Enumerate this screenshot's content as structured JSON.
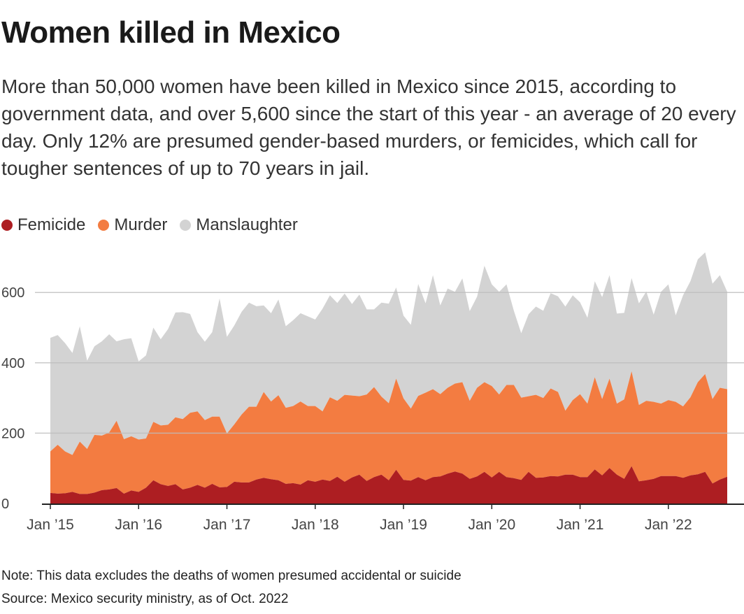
{
  "title": "Women killed in Mexico",
  "subtitle": "More than 50,000 women have been killed in Mexico since 2015, according to government data, and over 5,600 since the start of this year - an average of 20 every day. Only 12% are presumed gender-based murders, or femicides, which call for tougher sentences of up to 70 years in jail.",
  "note": "Note: This data excludes the deaths of women presumed accidental or suicide",
  "source": "Source: Mexico security ministry, as of Oct. 2022",
  "chart_data": {
    "type": "area",
    "stacked": true,
    "x_start": "Jan 2015",
    "x_end": "Sep 2022",
    "frequency": "monthly",
    "x_ticks": [
      "Jan ’15",
      "Jan ’16",
      "Jan ’17",
      "Jan ’18",
      "Jan ’19",
      "Jan ’20",
      "Jan ’21",
      "Jan ’22"
    ],
    "y_ticks": [
      "0",
      "200",
      "400",
      "600"
    ],
    "ylim": [
      0,
      720
    ],
    "grid": true,
    "legend_position": "top-left",
    "series": [
      {
        "name": "Femicide",
        "color": "#ad1e22",
        "values": [
          30,
          28,
          29,
          33,
          27,
          27,
          31,
          38,
          40,
          44,
          28,
          37,
          33,
          45,
          66,
          55,
          50,
          55,
          40,
          45,
          53,
          45,
          56,
          46,
          47,
          62,
          60,
          60,
          68,
          73,
          69,
          66,
          56,
          58,
          54,
          66,
          62,
          68,
          64,
          76,
          62,
          74,
          82,
          64,
          75,
          82,
          66,
          96,
          67,
          65,
          75,
          66,
          75,
          77,
          85,
          91,
          85,
          70,
          77,
          90,
          74,
          90,
          75,
          72,
          67,
          90,
          73,
          74,
          78,
          77,
          82,
          82,
          75,
          75,
          97,
          80,
          101,
          82,
          70,
          106,
          63,
          66,
          70,
          78,
          78,
          78,
          73,
          80,
          83,
          90,
          57,
          68,
          76
        ]
      },
      {
        "name": "Murder",
        "color": "#f37c41",
        "values": [
          118,
          139,
          119,
          105,
          149,
          128,
          164,
          155,
          162,
          191,
          155,
          154,
          149,
          140,
          166,
          167,
          174,
          190,
          200,
          213,
          209,
          192,
          191,
          201,
          152,
          163,
          193,
          215,
          207,
          244,
          221,
          242,
          216,
          219,
          236,
          211,
          215,
          194,
          238,
          216,
          247,
          233,
          223,
          246,
          256,
          222,
          219,
          259,
          232,
          205,
          231,
          249,
          250,
          234,
          244,
          250,
          260,
          222,
          252,
          255,
          260,
          220,
          262,
          265,
          234,
          215,
          236,
          226,
          249,
          240,
          182,
          212,
          236,
          209,
          262,
          217,
          254,
          202,
          226,
          270,
          217,
          226,
          219,
          206,
          216,
          211,
          203,
          222,
          262,
          278,
          240,
          261,
          249
        ]
      },
      {
        "name": "Manslaughter",
        "color": "#d3d3d3",
        "values": [
          323,
          312,
          308,
          290,
          328,
          251,
          252,
          268,
          279,
          226,
          284,
          279,
          222,
          236,
          268,
          245,
          272,
          298,
          304,
          281,
          225,
          223,
          240,
          336,
          275,
          281,
          292,
          296,
          286,
          246,
          251,
          272,
          232,
          244,
          251,
          255,
          246,
          292,
          290,
          278,
          288,
          260,
          289,
          242,
          221,
          267,
          283,
          259,
          235,
          238,
          318,
          254,
          324,
          252,
          282,
          261,
          295,
          255,
          259,
          331,
          289,
          292,
          286,
          211,
          183,
          233,
          251,
          248,
          271,
          272,
          296,
          298,
          261,
          244,
          273,
          290,
          294,
          256,
          246,
          265,
          289,
          311,
          248,
          318,
          329,
          246,
          316,
          330,
          349,
          346,
          328,
          320,
          277
        ]
      }
    ]
  }
}
